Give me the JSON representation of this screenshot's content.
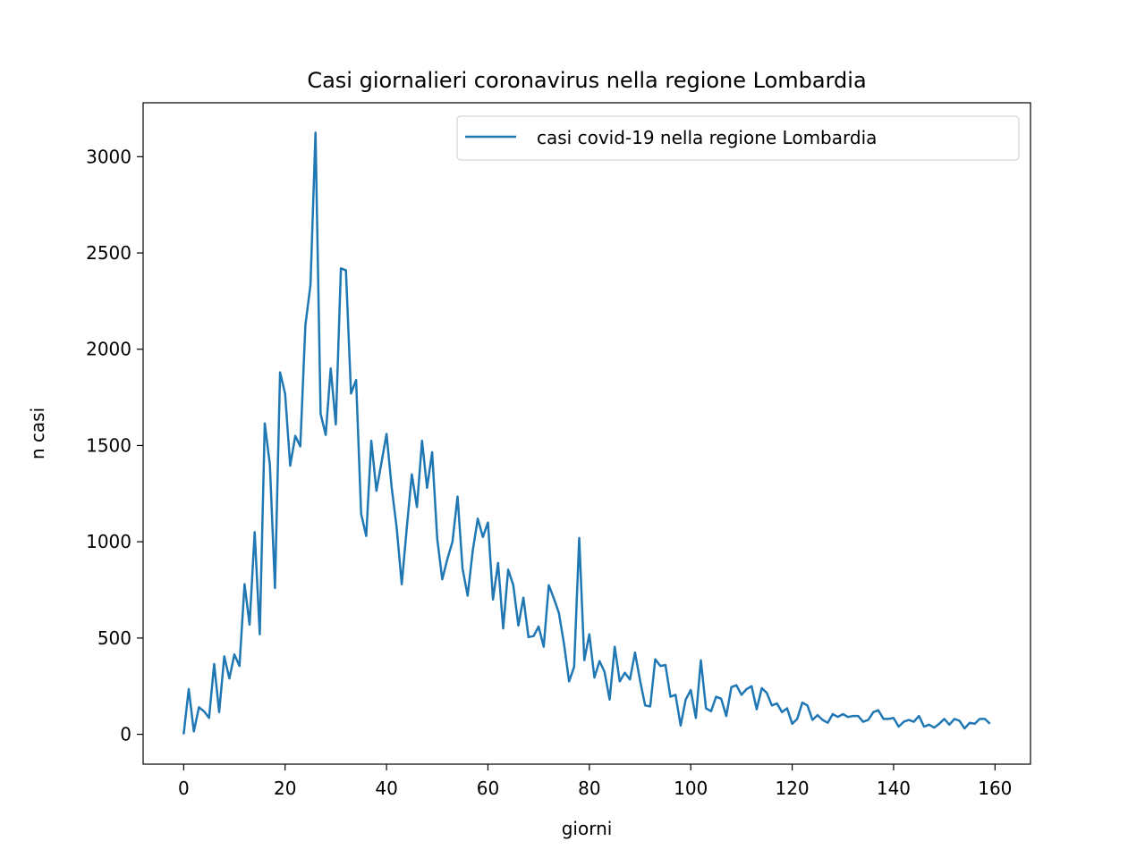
{
  "chart_data": {
    "type": "line",
    "title": "Casi giornalieri coronavirus nella regione Lombardia",
    "xlabel": "giorni",
    "ylabel": "n casi",
    "xlim": [
      -8,
      167
    ],
    "ylim": [
      -155,
      3280
    ],
    "xticks": [
      0,
      20,
      40,
      60,
      80,
      100,
      120,
      140,
      160
    ],
    "yticks": [
      0,
      500,
      1000,
      1500,
      2000,
      2500,
      3000
    ],
    "grid": false,
    "legend_position": "top-right",
    "series": [
      {
        "name": "casi covid-19 nella regione Lombardia",
        "color": "#1f77b4",
        "x": [
          0,
          1,
          2,
          3,
          4,
          5,
          6,
          7,
          8,
          9,
          10,
          11,
          12,
          13,
          14,
          15,
          16,
          17,
          18,
          19,
          20,
          21,
          22,
          23,
          24,
          25,
          26,
          27,
          28,
          29,
          30,
          31,
          32,
          33,
          34,
          35,
          36,
          37,
          38,
          39,
          40,
          41,
          42,
          43,
          44,
          45,
          46,
          47,
          48,
          49,
          50,
          51,
          52,
          53,
          54,
          55,
          56,
          57,
          58,
          59,
          60,
          61,
          62,
          63,
          64,
          65,
          66,
          67,
          68,
          69,
          70,
          71,
          72,
          73,
          74,
          75,
          76,
          77,
          78,
          79,
          80,
          81,
          82,
          83,
          84,
          85,
          86,
          87,
          88,
          89,
          90,
          91,
          92,
          93,
          94,
          95,
          96,
          97,
          98,
          99,
          100,
          101,
          102,
          103,
          104,
          105,
          106,
          107,
          108,
          109,
          110,
          111,
          112,
          113,
          114,
          115,
          116,
          117,
          118,
          119,
          120,
          121,
          122,
          123,
          124,
          125,
          126,
          127,
          128,
          129,
          130,
          131,
          132,
          133,
          134,
          135,
          136,
          137,
          138,
          139,
          140,
          141,
          142,
          143,
          144,
          145,
          146,
          147,
          148,
          149,
          150,
          151,
          152,
          153,
          154,
          155,
          156,
          157,
          158,
          159
        ],
        "y": [
          0,
          235,
          15,
          140,
          120,
          85,
          365,
          115,
          405,
          290,
          415,
          355,
          780,
          570,
          1050,
          520,
          1615,
          1400,
          760,
          1880,
          1770,
          1395,
          1550,
          1495,
          2125,
          2335,
          3125,
          1665,
          1555,
          1900,
          1610,
          2420,
          2410,
          1770,
          1840,
          1145,
          1030,
          1525,
          1265,
          1410,
          1560,
          1285,
          1075,
          780,
          1075,
          1350,
          1180,
          1525,
          1280,
          1465,
          1015,
          805,
          910,
          1000,
          1235,
          860,
          720,
          955,
          1120,
          1025,
          1100,
          700,
          890,
          550,
          855,
          775,
          565,
          710,
          505,
          510,
          560,
          455,
          775,
          705,
          630,
          470,
          275,
          350,
          1020,
          385,
          520,
          295,
          380,
          325,
          180,
          455,
          275,
          320,
          285,
          425,
          280,
          150,
          145,
          390,
          355,
          360,
          195,
          205,
          45,
          180,
          230,
          85,
          385,
          135,
          120,
          195,
          185,
          95,
          245,
          255,
          205,
          235,
          250,
          130,
          240,
          215,
          150,
          160,
          115,
          135,
          55,
          80,
          165,
          150,
          75,
          100,
          75,
          60,
          105,
          90,
          105,
          90,
          95,
          95,
          65,
          75,
          115,
          125,
          80,
          80,
          85,
          40,
          65,
          75,
          65,
          95,
          40,
          50,
          35,
          55,
          80,
          50,
          80,
          70,
          30,
          60,
          55,
          80,
          80,
          55
        ]
      }
    ]
  }
}
